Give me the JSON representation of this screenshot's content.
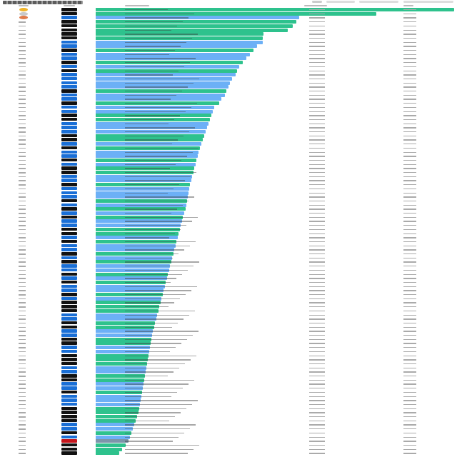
{
  "colors": {
    "green": "#2ec28d",
    "blue": "#6cb0f6",
    "gray": "#7c95aa",
    "badge_dark": "#111111",
    "badge_blue": "#1a6fd6",
    "badge_red": "#c4161c",
    "gold": "#f0b429",
    "silver": "#c9c9c9",
    "bronze": "#e07b4a"
  },
  "leaderboard": {
    "scores_pct": [
      100,
      78.3,
      56.8,
      56,
      55,
      53.6,
      46.8,
      46.6,
      46.6,
      45,
      44,
      43,
      42,
      41,
      40,
      39.5,
      39,
      38,
      37.5,
      37,
      36.5,
      36,
      35,
      34.5,
      33,
      32.6,
      32.2,
      31.8,
      31.4,
      31,
      30.6,
      30.2,
      29.8,
      29.4,
      29,
      28.7,
      28.4,
      28.1,
      27.8,
      27.5,
      27.2,
      26.9,
      26.6,
      26.3,
      26,
      25.8,
      25.6,
      25.4,
      25.2,
      25,
      24.7,
      24.4,
      24.1,
      23.8,
      23.5,
      23.2,
      22.9,
      22.6,
      22.3,
      22,
      21.7,
      21.4,
      21.1,
      20.8,
      20.5,
      20.2,
      19.9,
      19.6,
      19.3,
      19,
      18.7,
      18.4,
      18.1,
      17.8,
      17.5,
      17.2,
      16.9,
      16.6,
      16.3,
      16,
      15.8,
      15.6,
      15.4,
      15.2,
      15,
      14.8,
      14.6,
      14.4,
      14.2,
      14,
      13.8,
      13.6,
      13.4,
      13.2,
      13,
      12.8,
      12.6,
      12.4,
      12.2,
      12,
      11.6,
      11.2,
      10.8,
      10.4,
      10,
      9.6,
      9.2,
      8.4,
      7.4,
      6.6
    ],
    "kinds": "ggbgggggbbgbbgbgbbbbgbbgbbggbbbggbgbbgbggbbgbbbgbgbgbbggbgbbgbgbbgbgbbgbgggbbggbbggbbgggbbggbbgbbbggggbbgbrggg"
  }
}
